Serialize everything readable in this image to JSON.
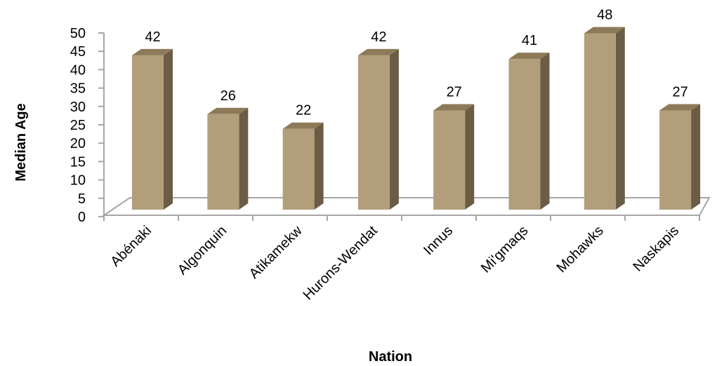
{
  "chart_data": {
    "type": "bar",
    "title": "",
    "xlabel": "Nation",
    "ylabel": "Median Age",
    "categories": [
      "Abénaki",
      "Algonquin",
      "Atikamekw",
      "Hurons-Wendat",
      "Innus",
      "Mi'gmaqs",
      "Mohawks",
      "Naskapis"
    ],
    "values": [
      42,
      26,
      22,
      42,
      27,
      41,
      48,
      27
    ],
    "ylim": [
      0,
      50
    ],
    "yticks": [
      0,
      5,
      10,
      15,
      20,
      25,
      30,
      35,
      40,
      45,
      50
    ],
    "grid": false,
    "legend": "none",
    "style": "3d",
    "colors": {
      "bar_front": "#b29e7b",
      "bar_side": "#6b5d45",
      "bar_top": "#8c7a59",
      "axis": "#a6a6a6"
    }
  }
}
